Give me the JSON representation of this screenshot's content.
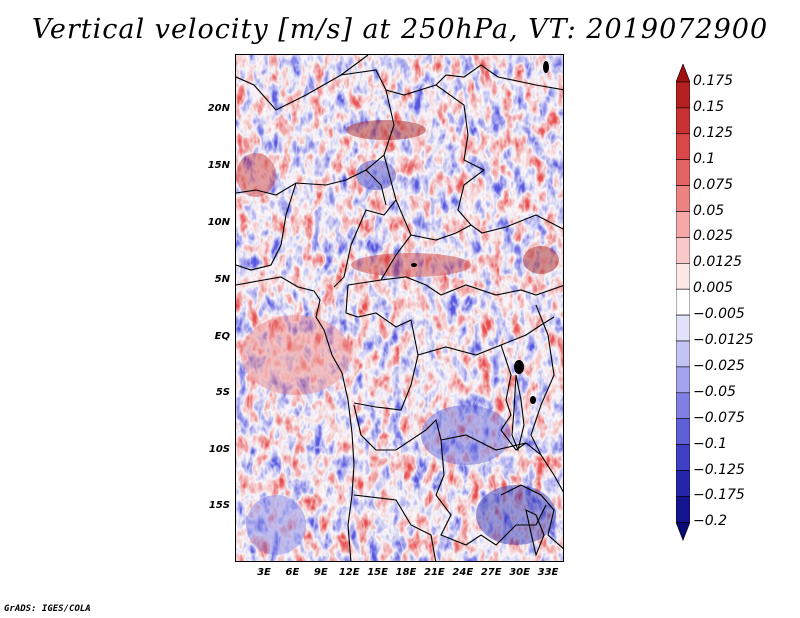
{
  "title": "Vertical velocity [m/s] at 250hPa, VT: 2019072900",
  "credit": "GrADS: IGES/COLA",
  "map": {
    "variable": "Vertical velocity",
    "units": "m/s",
    "level": "250hPa",
    "valid_time": "2019072900",
    "region": "Central Africa",
    "lat_labels": [
      "20N",
      "15N",
      "10N",
      "5N",
      "EQ",
      "5S",
      "10S",
      "15S"
    ],
    "lon_labels": [
      "3E",
      "6E",
      "9E",
      "12E",
      "15E",
      "18E",
      "21E",
      "24E",
      "27E",
      "30E",
      "33E"
    ]
  },
  "colorbar": {
    "labels": [
      "0.175",
      "0.15",
      "0.125",
      "0.1",
      "0.075",
      "0.05",
      "0.025",
      "0.0125",
      "0.005",
      "−0.005",
      "−0.0125",
      "−0.025",
      "−0.05",
      "−0.075",
      "−0.1",
      "−0.125",
      "−0.175",
      "−0.2"
    ],
    "colors": [
      "#a01010",
      "#b52020",
      "#c83232",
      "#d84848",
      "#e26464",
      "#ec8484",
      "#f4a8a8",
      "#f9c8c8",
      "#fde6e6",
      "#ffffff",
      "#e2e2fb",
      "#c4c4f4",
      "#a4a4ee",
      "#8080e4",
      "#6060d6",
      "#4040c4",
      "#2626aa",
      "#141490",
      "#0a0a72"
    ]
  }
}
